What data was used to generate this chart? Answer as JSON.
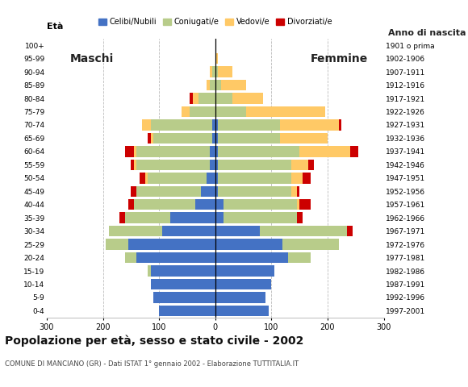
{
  "age_groups": [
    "0-4",
    "5-9",
    "10-14",
    "15-19",
    "20-24",
    "25-29",
    "30-34",
    "35-39",
    "40-44",
    "45-49",
    "50-54",
    "55-59",
    "60-64",
    "65-69",
    "70-74",
    "75-79",
    "80-84",
    "85-89",
    "90-94",
    "95-99",
    "100+"
  ],
  "birth_years": [
    "1997-2001",
    "1992-1996",
    "1987-1991",
    "1982-1986",
    "1977-1981",
    "1972-1976",
    "1967-1971",
    "1962-1966",
    "1957-1961",
    "1952-1956",
    "1947-1951",
    "1942-1946",
    "1937-1941",
    "1932-1936",
    "1927-1931",
    "1922-1926",
    "1917-1921",
    "1912-1916",
    "1907-1911",
    "1902-1906",
    "1901 o prima"
  ],
  "males": {
    "celibe": [
      100,
      110,
      115,
      115,
      140,
      155,
      95,
      80,
      35,
      25,
      15,
      10,
      10,
      5,
      5,
      0,
      0,
      0,
      0,
      0,
      0
    ],
    "coniugato": [
      0,
      0,
      0,
      5,
      20,
      40,
      95,
      80,
      110,
      115,
      105,
      130,
      130,
      105,
      110,
      45,
      30,
      10,
      5,
      0,
      0
    ],
    "vedovo": [
      0,
      0,
      0,
      0,
      0,
      0,
      0,
      0,
      0,
      0,
      5,
      5,
      5,
      5,
      15,
      15,
      10,
      5,
      5,
      0,
      0
    ],
    "divorziato": [
      0,
      0,
      0,
      0,
      0,
      0,
      0,
      10,
      10,
      10,
      10,
      5,
      15,
      5,
      0,
      0,
      5,
      0,
      0,
      0,
      0
    ]
  },
  "females": {
    "nubile": [
      95,
      90,
      100,
      105,
      130,
      120,
      80,
      15,
      15,
      5,
      5,
      5,
      5,
      5,
      5,
      0,
      0,
      0,
      0,
      0,
      0
    ],
    "coniugata": [
      0,
      0,
      0,
      0,
      40,
      100,
      155,
      130,
      130,
      130,
      130,
      130,
      145,
      110,
      110,
      55,
      30,
      10,
      5,
      0,
      0
    ],
    "vedova": [
      0,
      0,
      0,
      0,
      0,
      0,
      0,
      0,
      5,
      10,
      20,
      30,
      90,
      85,
      105,
      140,
      55,
      45,
      25,
      5,
      0
    ],
    "divorziata": [
      0,
      0,
      0,
      0,
      0,
      0,
      10,
      10,
      20,
      5,
      15,
      10,
      15,
      0,
      5,
      0,
      0,
      0,
      0,
      0,
      0
    ]
  },
  "color_celibe": "#4472c4",
  "color_coniugato": "#b8cc8a",
  "color_vedovo": "#ffc966",
  "color_divorziato": "#cc0000",
  "title": "Popolazione per età, sesso e stato civile - 2002",
  "subtitle": "COMUNE DI MANCIANO (GR) - Dati ISTAT 1° gennaio 2002 - Elaborazione TUTTITALIA.IT",
  "label_eta": "Età",
  "label_anno": "Anno di nascita",
  "label_maschi": "Maschi",
  "label_femmine": "Femmine",
  "legend_celibe": "Celibi/Nubili",
  "legend_coniugato": "Coniugati/e",
  "legend_vedovo": "Vedovi/e",
  "legend_divorziato": "Divorziati/e",
  "xlim": 300,
  "background_color": "#ffffff",
  "grid_color": "#bbbbbb"
}
